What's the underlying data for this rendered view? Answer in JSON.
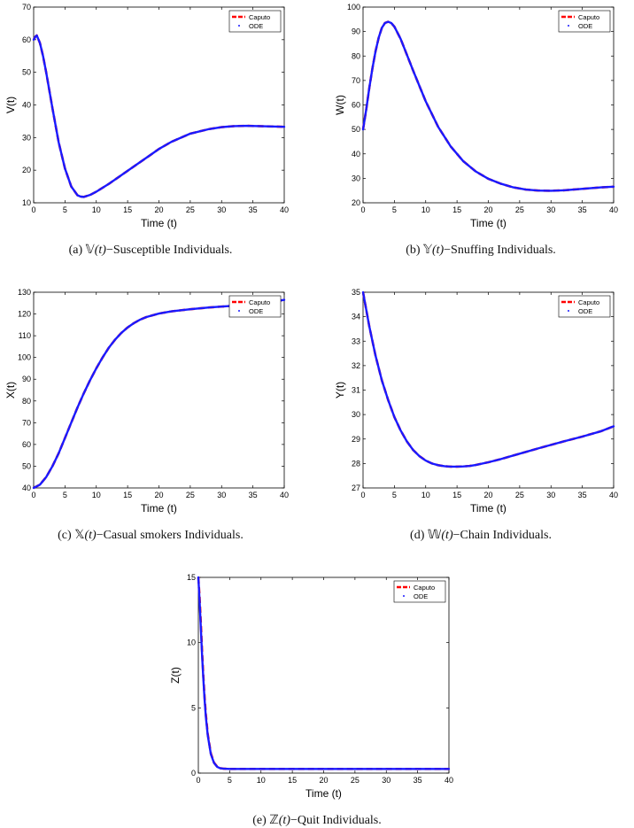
{
  "legend": {
    "caputo": "Caputo",
    "ode": "ODE"
  },
  "colors": {
    "caputo": "#ff0000",
    "ode": "#1a1aff"
  },
  "chart_data": [
    {
      "type": "line",
      "ylabel": "V(t)",
      "xlabel": "Time (t)",
      "xlim": [
        0,
        40
      ],
      "ylim": [
        10,
        70
      ],
      "xticks": [
        0,
        5,
        10,
        15,
        20,
        25,
        30,
        35,
        40
      ],
      "yticks": [
        10,
        20,
        30,
        40,
        50,
        60,
        70
      ],
      "caption": {
        "prefix": "(a) ",
        "symbol": "𝕍",
        "var": "(t)",
        "suffix": "−Susceptible Individuals."
      },
      "series": [
        {
          "name": "Caputo",
          "x": [
            0,
            0.3,
            0.5,
            1,
            1.5,
            2,
            3,
            4,
            5,
            6,
            7,
            7.5,
            8,
            9,
            10,
            12,
            15,
            18,
            20,
            22,
            25,
            28,
            30,
            32,
            34,
            36,
            38,
            40
          ],
          "y": [
            60,
            61,
            61.3,
            59,
            55,
            50,
            39,
            28.5,
            20.5,
            15,
            12.3,
            11.9,
            11.8,
            12.4,
            13.4,
            15.8,
            19.8,
            23.8,
            26.5,
            28.7,
            31.2,
            32.6,
            33.2,
            33.5,
            33.6,
            33.5,
            33.4,
            33.3
          ]
        },
        {
          "name": "ODE",
          "x": [
            0,
            0.3,
            0.5,
            1,
            1.5,
            2,
            3,
            4,
            5,
            6,
            7,
            7.5,
            8,
            9,
            10,
            12,
            15,
            18,
            20,
            22,
            25,
            28,
            30,
            32,
            34,
            36,
            38,
            40
          ],
          "y": [
            60,
            61,
            61.3,
            59,
            55,
            50,
            39,
            28.5,
            20.5,
            15,
            12.3,
            11.9,
            11.8,
            12.4,
            13.4,
            15.8,
            19.8,
            23.8,
            26.5,
            28.7,
            31.2,
            32.6,
            33.2,
            33.5,
            33.6,
            33.5,
            33.4,
            33.3
          ]
        }
      ]
    },
    {
      "type": "line",
      "ylabel": "W(t)",
      "xlabel": "Time (t)",
      "xlim": [
        0,
        40
      ],
      "ylim": [
        20,
        100
      ],
      "xticks": [
        0,
        5,
        10,
        15,
        20,
        25,
        30,
        35,
        40
      ],
      "yticks": [
        20,
        30,
        40,
        50,
        60,
        70,
        80,
        90,
        100
      ],
      "caption": {
        "prefix": "(b) ",
        "symbol": "𝕐",
        "var": "(t)",
        "suffix": "−Snuffing Individuals."
      },
      "series": [
        {
          "name": "Caputo",
          "x": [
            0,
            0.5,
            1,
            1.5,
            2,
            2.5,
            3,
            3.5,
            4,
            4.5,
            5,
            6,
            7,
            8,
            10,
            12,
            14,
            16,
            18,
            20,
            22,
            24,
            26,
            28,
            30,
            32,
            34,
            36,
            38,
            40
          ],
          "y": [
            50,
            58,
            67,
            75,
            82,
            87.5,
            91.5,
            93.5,
            94,
            93.5,
            92,
            87,
            80.5,
            74,
            61.5,
            51,
            43,
            37,
            32.8,
            29.8,
            27.8,
            26.3,
            25.4,
            25,
            24.9,
            25.1,
            25.5,
            25.9,
            26.3,
            26.6
          ]
        },
        {
          "name": "ODE",
          "x": [
            0,
            0.5,
            1,
            1.5,
            2,
            2.5,
            3,
            3.5,
            4,
            4.5,
            5,
            6,
            7,
            8,
            10,
            12,
            14,
            16,
            18,
            20,
            22,
            24,
            26,
            28,
            30,
            32,
            34,
            36,
            38,
            40
          ],
          "y": [
            50,
            58,
            67,
            75,
            82,
            87.5,
            91.5,
            93.5,
            94,
            93.5,
            92,
            87,
            80.5,
            74,
            61.5,
            51,
            43,
            37,
            32.8,
            29.8,
            27.8,
            26.3,
            25.4,
            25,
            24.9,
            25.1,
            25.5,
            25.9,
            26.3,
            26.6
          ]
        }
      ]
    },
    {
      "type": "line",
      "ylabel": "X(t)",
      "xlabel": "Time (t)",
      "xlim": [
        0,
        40
      ],
      "ylim": [
        40,
        130
      ],
      "xticks": [
        0,
        5,
        10,
        15,
        20,
        25,
        30,
        35,
        40
      ],
      "yticks": [
        40,
        50,
        60,
        70,
        80,
        90,
        100,
        110,
        120,
        130
      ],
      "caption": {
        "prefix": "(c) ",
        "symbol": "𝕏",
        "var": "(t)",
        "suffix": "−Casual smokers Individuals."
      },
      "series": [
        {
          "name": "Caputo",
          "x": [
            0,
            1,
            2,
            3,
            4,
            5,
            6,
            7,
            8,
            9,
            10,
            11,
            12,
            13,
            14,
            15,
            16,
            17,
            18,
            20,
            22,
            25,
            28,
            30,
            33,
            36,
            38,
            40
          ],
          "y": [
            40,
            41.5,
            45,
            50,
            56,
            63,
            70,
            77,
            83.5,
            89.5,
            95,
            100,
            104.5,
            108.2,
            111.3,
            113.8,
            115.8,
            117.4,
            118.6,
            120.2,
            121.2,
            122.2,
            123,
            123.4,
            124,
            124.7,
            125.5,
            126.5
          ]
        },
        {
          "name": "ODE",
          "x": [
            0,
            1,
            2,
            3,
            4,
            5,
            6,
            7,
            8,
            9,
            10,
            11,
            12,
            13,
            14,
            15,
            16,
            17,
            18,
            20,
            22,
            25,
            28,
            30,
            33,
            36,
            38,
            40
          ],
          "y": [
            40,
            41.5,
            45,
            50,
            56,
            63,
            70,
            77,
            83.5,
            89.5,
            95,
            100,
            104.5,
            108.2,
            111.3,
            113.8,
            115.8,
            117.4,
            118.6,
            120.2,
            121.2,
            122.2,
            123,
            123.4,
            124,
            124.7,
            125.5,
            126.5
          ]
        }
      ]
    },
    {
      "type": "line",
      "ylabel": "Y(t)",
      "xlabel": "Time (t)",
      "xlim": [
        0,
        40
      ],
      "ylim": [
        27,
        35
      ],
      "xticks": [
        0,
        5,
        10,
        15,
        20,
        25,
        30,
        35,
        40
      ],
      "yticks": [
        27,
        28,
        29,
        30,
        31,
        32,
        33,
        34,
        35
      ],
      "caption": {
        "prefix": "(d) ",
        "symbol": "𝕎",
        "var": "(t)",
        "suffix": "−Chain Individuals."
      },
      "series": [
        {
          "name": "Caputo",
          "x": [
            0,
            1,
            2,
            3,
            4,
            5,
            6,
            7,
            8,
            9,
            10,
            11,
            12,
            13,
            14,
            15,
            16,
            17,
            18,
            20,
            22,
            25,
            28,
            30,
            32,
            35,
            38,
            40
          ],
          "y": [
            35,
            33.6,
            32.4,
            31.4,
            30.6,
            29.9,
            29.35,
            28.9,
            28.55,
            28.3,
            28.12,
            28,
            27.93,
            27.89,
            27.87,
            27.87,
            27.88,
            27.9,
            27.94,
            28.05,
            28.18,
            28.4,
            28.62,
            28.76,
            28.9,
            29.1,
            29.32,
            29.52
          ]
        },
        {
          "name": "ODE",
          "x": [
            0,
            1,
            2,
            3,
            4,
            5,
            6,
            7,
            8,
            9,
            10,
            11,
            12,
            13,
            14,
            15,
            16,
            17,
            18,
            20,
            22,
            25,
            28,
            30,
            32,
            35,
            38,
            40
          ],
          "y": [
            35,
            33.6,
            32.4,
            31.4,
            30.6,
            29.9,
            29.35,
            28.9,
            28.55,
            28.3,
            28.12,
            28,
            27.93,
            27.89,
            27.87,
            27.87,
            27.88,
            27.9,
            27.94,
            28.05,
            28.18,
            28.4,
            28.62,
            28.76,
            28.9,
            29.1,
            29.32,
            29.52
          ]
        }
      ]
    },
    {
      "type": "line",
      "ylabel": "Z(t)",
      "xlabel": "Time (t)",
      "xlim": [
        0,
        40
      ],
      "ylim": [
        0,
        15
      ],
      "xticks": [
        0,
        5,
        10,
        15,
        20,
        25,
        30,
        35,
        40
      ],
      "yticks": [
        0,
        5,
        10,
        15
      ],
      "caption": {
        "prefix": "(e) ",
        "symbol": "ℤ",
        "var": "(t)",
        "suffix": "−Quit Individuals."
      },
      "series": [
        {
          "name": "Caputo",
          "x": [
            0,
            0.2,
            0.4,
            0.6,
            0.8,
            1,
            1.2,
            1.5,
            2,
            2.5,
            3,
            3.5,
            4,
            5,
            10,
            20,
            30,
            40
          ],
          "y": [
            15,
            13.5,
            11.5,
            9.3,
            7.4,
            5.8,
            4.5,
            3,
            1.5,
            0.8,
            0.5,
            0.38,
            0.34,
            0.32,
            0.32,
            0.32,
            0.32,
            0.32
          ]
        },
        {
          "name": "ODE",
          "x": [
            0,
            0.2,
            0.4,
            0.6,
            0.8,
            1,
            1.2,
            1.5,
            2,
            2.5,
            3,
            3.5,
            4,
            5,
            10,
            20,
            30,
            40
          ],
          "y": [
            15,
            13.2,
            11.1,
            9,
            7.2,
            5.6,
            4.3,
            2.9,
            1.45,
            0.78,
            0.48,
            0.37,
            0.34,
            0.32,
            0.32,
            0.32,
            0.32,
            0.32
          ]
        }
      ]
    }
  ]
}
